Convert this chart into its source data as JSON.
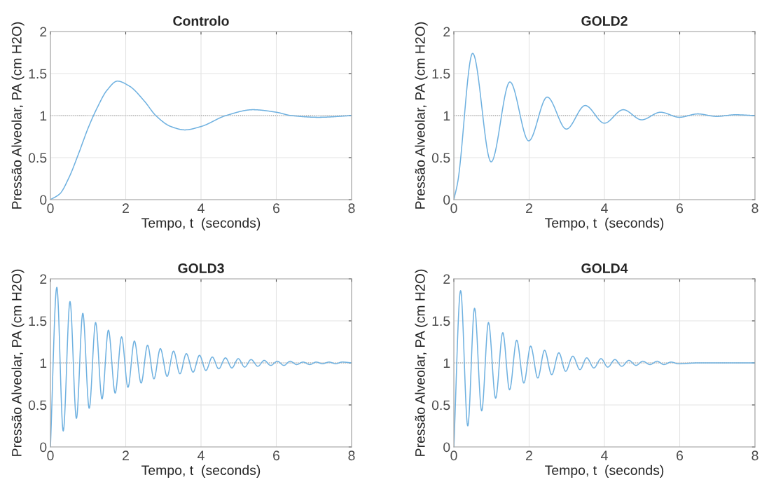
{
  "chart_data": [
    {
      "type": "line",
      "title": "Controlo",
      "xlabel": "Tempo, t  (seconds)",
      "ylabel": "Pressão Alveolar, PA (cm H2O)",
      "xlim": [
        0,
        8
      ],
      "ylim": [
        0,
        2
      ],
      "xticks": [
        0,
        2,
        4,
        6,
        8
      ],
      "yticks": [
        0,
        0.5,
        1,
        1.5,
        2
      ],
      "grid": true,
      "ref_lines": [
        {
          "axis": "y",
          "value": 1,
          "color": "#8c8c8c",
          "line_style": "dotted"
        }
      ],
      "series": [
        {
          "color": "#6fb1e0",
          "x": [
            0,
            0.25,
            0.5,
            0.75,
            1,
            1.25,
            1.5,
            1.78,
            2.1,
            2.5,
            2.8,
            3.2,
            3.57,
            4,
            4.66,
            5.38,
            6,
            6.4,
            7.12,
            8
          ],
          "values": [
            0,
            0.07,
            0.27,
            0.55,
            0.85,
            1.1,
            1.3,
            1.41,
            1.35,
            1.17,
            1.0,
            0.87,
            0.83,
            0.87,
            1.0,
            1.07,
            1.04,
            1.0,
            0.98,
            1.0
          ]
        }
      ]
    },
    {
      "type": "line",
      "title": "GOLD2",
      "xlabel": "Tempo, t  (seconds)",
      "ylabel": "Pressão Alveolar, PA (cm H2O)",
      "xlim": [
        0,
        8
      ],
      "ylim": [
        0,
        2
      ],
      "xticks": [
        0,
        2,
        4,
        6,
        8
      ],
      "yticks": [
        0,
        0.5,
        1,
        1.5,
        2
      ],
      "grid": true,
      "ref_lines": [
        {
          "axis": "y",
          "value": 1,
          "color": "#8c8c8c",
          "line_style": "dotted"
        }
      ],
      "series": [
        {
          "color": "#6fb1e0",
          "x": [
            0,
            0.1,
            0.5,
            0.99,
            1.49,
            1.99,
            2.48,
            2.99,
            3.49,
            4.0,
            4.5,
            4.99,
            5.49,
            5.99,
            6.48,
            6.98,
            7.48,
            8
          ],
          "values": [
            0,
            0.2,
            1.74,
            0.45,
            1.4,
            0.7,
            1.22,
            0.84,
            1.12,
            0.91,
            1.07,
            0.95,
            1.04,
            0.98,
            1.02,
            0.99,
            1.01,
            1.0
          ]
        }
      ]
    },
    {
      "type": "line",
      "title": "GOLD3",
      "xlabel": "Tempo, t  (seconds)",
      "ylabel": "Pressão Alveolar, PA (cm H2O)",
      "xlim": [
        0,
        8
      ],
      "ylim": [
        0,
        2
      ],
      "xticks": [
        0,
        2,
        4,
        6,
        8
      ],
      "yticks": [
        0,
        0.5,
        1,
        1.5,
        2
      ],
      "grid": true,
      "ref_lines": [
        {
          "axis": "y",
          "value": 1,
          "color": "#8c8c8c",
          "line_style": "dotted"
        }
      ],
      "series": [
        {
          "color": "#6fb1e0",
          "x": [
            0,
            0.17,
            0.34,
            0.52,
            0.69,
            0.86,
            1.03,
            1.2,
            1.37,
            1.54,
            1.72,
            1.89,
            2.06,
            2.23,
            2.41,
            2.58,
            2.75,
            2.92,
            3.1,
            3.27,
            3.44,
            3.61,
            3.79,
            3.96,
            4.13,
            4.3,
            4.47,
            4.65,
            4.82,
            4.99,
            5.16,
            5.33,
            5.51,
            5.68,
            5.85,
            6.03,
            6.2,
            6.37,
            6.54,
            6.71,
            6.89,
            7.06,
            7.23,
            7.4,
            7.58,
            7.75,
            8.0
          ],
          "values": [
            0,
            1.9,
            0.19,
            1.73,
            0.34,
            1.59,
            0.46,
            1.48,
            0.57,
            1.39,
            0.64,
            1.31,
            0.71,
            1.26,
            0.76,
            1.21,
            0.81,
            1.17,
            0.84,
            1.14,
            0.87,
            1.11,
            0.89,
            1.09,
            0.91,
            1.07,
            0.93,
            1.06,
            0.94,
            1.05,
            0.95,
            1.04,
            0.96,
            1.03,
            0.97,
            1.02,
            0.97,
            1.02,
            0.98,
            1.01,
            0.98,
            1.01,
            0.99,
            1.01,
            0.99,
            1.01,
            1.0
          ]
        }
      ]
    },
    {
      "type": "line",
      "title": "GOLD4",
      "xlabel": "Tempo, t  (seconds)",
      "ylabel": "Pressão Alveolar, PA (cm H2O)",
      "xlim": [
        0,
        8
      ],
      "ylim": [
        0,
        2
      ],
      "xticks": [
        0,
        2,
        4,
        6,
        8
      ],
      "yticks": [
        0,
        0.5,
        1,
        1.5,
        2
      ],
      "grid": true,
      "ref_lines": [
        {
          "axis": "y",
          "value": 1,
          "color": "#8c8c8c",
          "line_style": "dotted"
        }
      ],
      "series": [
        {
          "color": "#6fb1e0",
          "x": [
            0,
            0.18,
            0.37,
            0.55,
            0.74,
            0.92,
            1.11,
            1.3,
            1.48,
            1.67,
            1.86,
            2.04,
            2.23,
            2.41,
            2.6,
            2.79,
            2.97,
            3.16,
            3.35,
            3.53,
            3.72,
            3.91,
            4.09,
            4.28,
            4.46,
            4.65,
            4.84,
            5.02,
            5.21,
            5.4,
            5.58,
            5.77,
            5.96,
            6.5,
            8
          ],
          "values": [
            0,
            1.86,
            0.25,
            1.65,
            0.43,
            1.48,
            0.58,
            1.36,
            0.68,
            1.27,
            0.76,
            1.2,
            0.82,
            1.15,
            0.86,
            1.12,
            0.9,
            1.08,
            0.92,
            1.06,
            0.94,
            1.05,
            0.95,
            1.04,
            0.96,
            1.03,
            0.97,
            1.02,
            0.98,
            1.02,
            0.98,
            1.01,
            0.99,
            1.0,
            1.0
          ]
        }
      ]
    }
  ]
}
